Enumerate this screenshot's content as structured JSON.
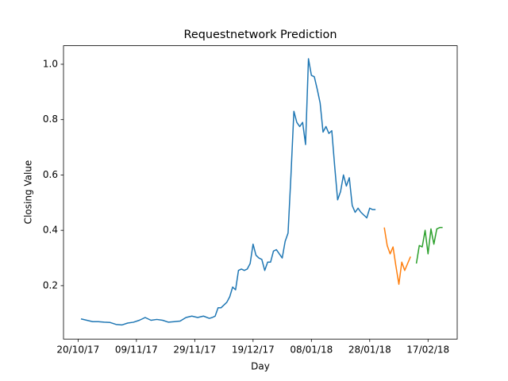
{
  "chart_data": {
    "type": "line",
    "title": "Requestnetwork Prediction",
    "xlabel": "Day",
    "ylabel": "Closing Value",
    "xlim": [
      "2017-10-15",
      "2018-02-27"
    ],
    "xticks": [
      {
        "value": "2017-10-20",
        "label": "20/10/17"
      },
      {
        "value": "2017-11-09",
        "label": "09/11/17"
      },
      {
        "value": "2017-11-29",
        "label": "29/11/17"
      },
      {
        "value": "2017-12-19",
        "label": "19/12/17"
      },
      {
        "value": "2018-01-08",
        "label": "08/01/18"
      },
      {
        "value": "2018-01-28",
        "label": "28/01/18"
      },
      {
        "value": "2018-02-17",
        "label": "17/02/18"
      }
    ],
    "ylim": [
      0.007,
      1.067
    ],
    "yticks": [
      0.2,
      0.4,
      0.6,
      0.8,
      {
        "value": 1,
        "label": "1.0"
      }
    ],
    "grid": false,
    "series": [
      {
        "color": "#1f77b4",
        "x": [
          "2017-10-21",
          "2017-10-23",
          "2017-10-25",
          "2017-10-27",
          "2017-10-29",
          "2017-10-31",
          "2017-11-02",
          "2017-11-04",
          "2017-11-06",
          "2017-11-08",
          "2017-11-10",
          "2017-11-12",
          "2017-11-14",
          "2017-11-16",
          "2017-11-18",
          "2017-11-20",
          "2017-11-22",
          "2017-11-24",
          "2017-11-26",
          "2017-11-28",
          "2017-11-30",
          "2017-12-02",
          "2017-12-04",
          "2017-12-05",
          "2017-12-06",
          "2017-12-07",
          "2017-12-08",
          "2017-12-09",
          "2017-12-10",
          "2017-12-11",
          "2017-12-12",
          "2017-12-13",
          "2017-12-14",
          "2017-12-15",
          "2017-12-16",
          "2017-12-17",
          "2017-12-18",
          "2017-12-19",
          "2017-12-20",
          "2017-12-21",
          "2017-12-22",
          "2017-12-23",
          "2017-12-24",
          "2017-12-25",
          "2017-12-26",
          "2017-12-27",
          "2017-12-28",
          "2017-12-29",
          "2017-12-30",
          "2017-12-31",
          "2018-01-01",
          "2018-01-02",
          "2018-01-03",
          "2018-01-04",
          "2018-01-05",
          "2018-01-06",
          "2018-01-07",
          "2018-01-08",
          "2018-01-09",
          "2018-01-10",
          "2018-01-11",
          "2018-01-12",
          "2018-01-13",
          "2018-01-14",
          "2018-01-15",
          "2018-01-16",
          "2018-01-17",
          "2018-01-18",
          "2018-01-19",
          "2018-01-20",
          "2018-01-21",
          "2018-01-22",
          "2018-01-23",
          "2018-01-24",
          "2018-01-25",
          "2018-01-26",
          "2018-01-27",
          "2018-01-28",
          "2018-01-29",
          "2018-01-30"
        ],
        "values": [
          0.08,
          0.075,
          0.07,
          0.07,
          0.068,
          0.067,
          0.06,
          0.058,
          0.065,
          0.068,
          0.075,
          0.085,
          0.075,
          0.078,
          0.075,
          0.068,
          0.07,
          0.072,
          0.085,
          0.09,
          0.085,
          0.09,
          0.082,
          0.085,
          0.09,
          0.12,
          0.12,
          0.13,
          0.14,
          0.16,
          0.195,
          0.185,
          0.255,
          0.26,
          0.255,
          0.26,
          0.28,
          0.35,
          0.31,
          0.3,
          0.295,
          0.255,
          0.285,
          0.285,
          0.325,
          0.33,
          0.315,
          0.3,
          0.36,
          0.39,
          0.6,
          0.83,
          0.79,
          0.775,
          0.79,
          0.71,
          1.02,
          0.96,
          0.955,
          0.91,
          0.86,
          0.755,
          0.775,
          0.75,
          0.76,
          0.63,
          0.51,
          0.54,
          0.6,
          0.56,
          0.59,
          0.49,
          0.465,
          0.48,
          0.465,
          0.455,
          0.445,
          0.48,
          0.475,
          0.475
        ]
      },
      {
        "color": "#ff7f0e",
        "x": [
          "2018-02-02",
          "2018-02-03",
          "2018-02-04",
          "2018-02-05",
          "2018-02-06",
          "2018-02-07",
          "2018-02-08",
          "2018-02-09",
          "2018-02-10",
          "2018-02-11"
        ],
        "values": [
          0.41,
          0.345,
          0.315,
          0.34,
          0.27,
          0.205,
          0.285,
          0.255,
          0.28,
          0.305
        ]
      },
      {
        "color": "#2ca02c",
        "x": [
          "2018-02-13",
          "2018-02-14",
          "2018-02-15",
          "2018-02-16",
          "2018-02-17",
          "2018-02-18",
          "2018-02-19",
          "2018-02-20",
          "2018-02-21",
          "2018-02-22"
        ],
        "values": [
          0.28,
          0.345,
          0.34,
          0.4,
          0.315,
          0.405,
          0.35,
          0.405,
          0.41,
          0.41
        ]
      }
    ]
  }
}
